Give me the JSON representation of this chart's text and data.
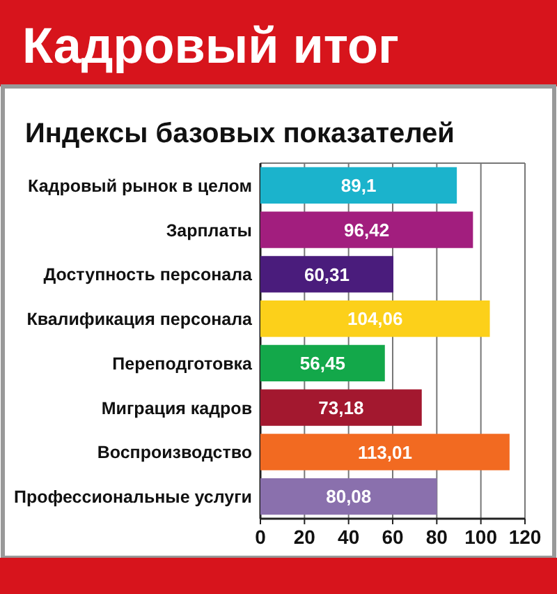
{
  "chart_data": {
    "type": "bar",
    "orientation": "horizontal",
    "title": "Кадровый итог",
    "subtitle": "Индексы базовых показателей",
    "categories": [
      "Кадровый рынок в целом",
      "Зарплаты",
      "Доступность персонала",
      "Квалификация персонала",
      "Переподготовка",
      "Миграция кадров",
      "Воспроизводство",
      "Профессиональные услуги"
    ],
    "values": [
      89.1,
      96.42,
      60.31,
      104.06,
      56.45,
      73.18,
      113.01,
      80.08
    ],
    "value_labels": [
      "89,1",
      "96,42",
      "60,31",
      "104,06",
      "56,45",
      "73,18",
      "113,01",
      "80,08"
    ],
    "colors": [
      "#1bb3cc",
      "#a21e7e",
      "#4a1c7c",
      "#fcd01a",
      "#13a84a",
      "#a3182f",
      "#f26a21",
      "#8a70ad"
    ],
    "xlim": [
      0,
      120
    ],
    "xticks": [
      0,
      20,
      40,
      60,
      80,
      100,
      120
    ],
    "grid": "x"
  }
}
